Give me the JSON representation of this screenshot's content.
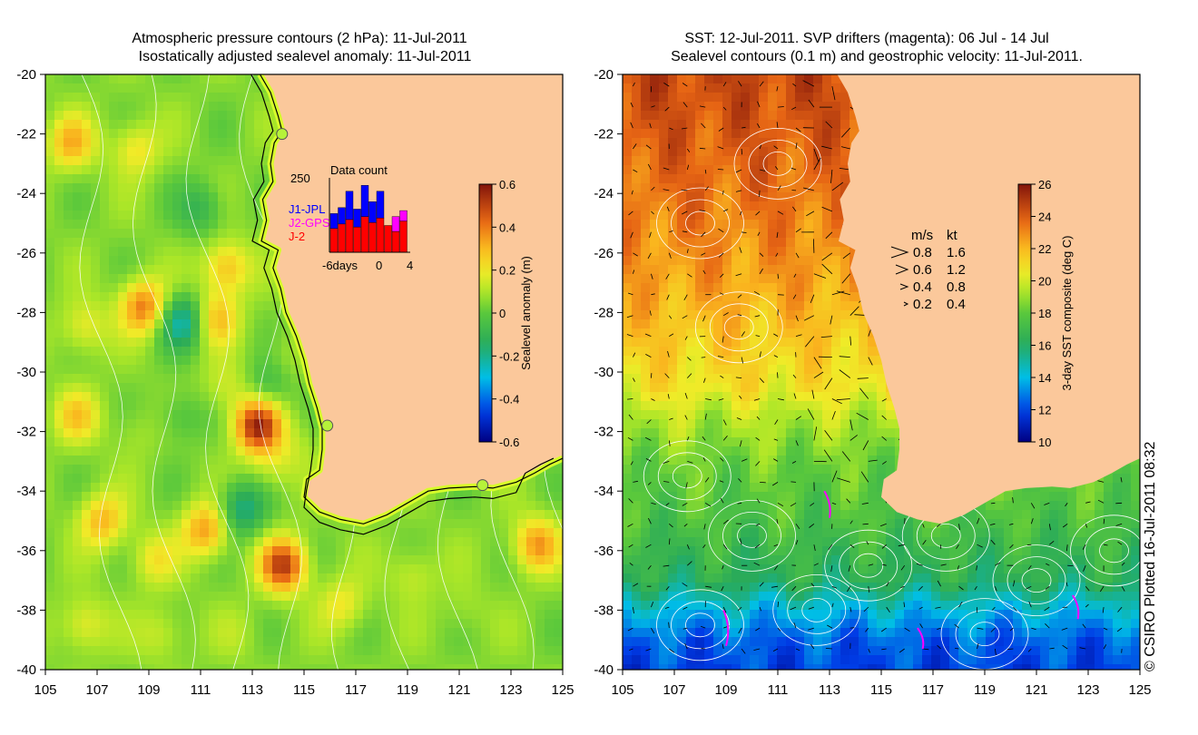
{
  "chart_data": [
    {
      "type": "heatmap",
      "title": [
        "Atmospheric pressure contours (2 hPa): 11-Jul-2011",
        "Isostatically adjusted sealevel anomaly: 11-Jul-2011"
      ],
      "xlim": [
        105,
        125
      ],
      "ylim": [
        -40,
        -20
      ],
      "xticks": [
        105,
        107,
        109,
        111,
        113,
        115,
        117,
        119,
        121,
        123,
        125
      ],
      "yticks": [
        -40,
        -38,
        -36,
        -34,
        -32,
        -30,
        -28,
        -26,
        -24,
        -22,
        -20
      ],
      "colorbar": {
        "label": "Sealevel anomaly (m)",
        "range": [
          -0.6,
          0.6
        ],
        "ticks": [
          "-0.6",
          "-0.4",
          "-0.2",
          "0",
          "0.2",
          "0.4",
          "0.6"
        ]
      },
      "tide_gauges": [
        {
          "lon": 114.15,
          "lat": -22.0
        },
        {
          "lon": 115.9,
          "lat": -31.8
        },
        {
          "lon": 121.9,
          "lat": -33.8
        }
      ],
      "inset": {
        "title": "Data count",
        "ymax_label": "250",
        "ymax": 250,
        "x_ticks": [
          "-6days",
          "0",
          "4"
        ],
        "series_labels": [
          {
            "name": "J1-JPL",
            "color": "#0000ff"
          },
          {
            "name": "J2-GPS",
            "color": "#ff00ff"
          },
          {
            "name": "J-2",
            "color": "#ff0000"
          }
        ],
        "days": [
          -6,
          -5,
          -4,
          -3,
          -2,
          -1,
          0,
          1,
          2,
          3
        ],
        "series": [
          {
            "name": "J-2",
            "values": [
              80,
              95,
              110,
              85,
              120,
              100,
              115,
              90,
              70,
              105
            ]
          },
          {
            "name": "J1-JPL",
            "values": [
              50,
              55,
              95,
              60,
              105,
              70,
              90,
              0,
              0,
              0
            ]
          },
          {
            "name": "J2-GPS",
            "values": [
              0,
              0,
              0,
              0,
              0,
              0,
              0,
              0,
              50,
              35
            ]
          }
        ]
      },
      "anomaly_centers": [
        {
          "lon": 106.0,
          "lat": -22.3,
          "value": 0.3
        },
        {
          "lon": 108.5,
          "lat": -22.5,
          "value": 0.22
        },
        {
          "lon": 111.0,
          "lat": -24.5,
          "value": -0.1
        },
        {
          "lon": 112.0,
          "lat": -26.5,
          "value": 0.3
        },
        {
          "lon": 111.6,
          "lat": -28.2,
          "value": 0.28
        },
        {
          "lon": 108.8,
          "lat": -27.8,
          "value": 0.4
        },
        {
          "lon": 110.3,
          "lat": -28.3,
          "value": -0.25
        },
        {
          "lon": 106.5,
          "lat": -28.5,
          "value": 0.2
        },
        {
          "lon": 106.2,
          "lat": -31.5,
          "value": 0.25
        },
        {
          "lon": 108.5,
          "lat": -32.0,
          "value": 0.1
        },
        {
          "lon": 110.2,
          "lat": -31.5,
          "value": -0.05
        },
        {
          "lon": 113.2,
          "lat": -31.8,
          "value": 0.55
        },
        {
          "lon": 112.0,
          "lat": -30.5,
          "value": 0.15
        },
        {
          "lon": 113.6,
          "lat": -30.5,
          "value": -0.08
        },
        {
          "lon": 107.2,
          "lat": -35.0,
          "value": 0.3
        },
        {
          "lon": 109.2,
          "lat": -36.3,
          "value": 0.2
        },
        {
          "lon": 111.2,
          "lat": -35.3,
          "value": 0.35
        },
        {
          "lon": 112.6,
          "lat": -34.6,
          "value": -0.2
        },
        {
          "lon": 114.2,
          "lat": -36.5,
          "value": 0.5
        },
        {
          "lon": 113.8,
          "lat": -33.2,
          "value": 0.15
        },
        {
          "lon": 110.0,
          "lat": -34.0,
          "value": 0.05
        },
        {
          "lon": 116.5,
          "lat": -37.8,
          "value": 0.2
        },
        {
          "lon": 119.2,
          "lat": -36.8,
          "value": 0.15
        },
        {
          "lon": 121.2,
          "lat": -38.0,
          "value": 0.1
        },
        {
          "lon": 124.0,
          "lat": -35.8,
          "value": 0.35
        },
        {
          "lon": 106.5,
          "lat": -38.5,
          "value": 0.2
        },
        {
          "lon": 109.5,
          "lat": -38.8,
          "value": 0.15
        },
        {
          "lon": 112.5,
          "lat": -38.8,
          "value": 0.1
        },
        {
          "lon": 114.2,
          "lat": -29.5,
          "value": 0.1
        },
        {
          "lon": 114.7,
          "lat": -32.5,
          "value": 0.1
        }
      ],
      "background_value": 0.05
    },
    {
      "type": "heatmap",
      "title": [
        "SST: 12-Jul-2011. SVP drifters (magenta): 06 Jul - 14 Jul",
        "Sealevel contours (0.1 m) and geostrophic velocity: 11-Jul-2011."
      ],
      "xlim": [
        105,
        125
      ],
      "ylim": [
        -40,
        -20
      ],
      "xticks": [
        105,
        107,
        109,
        111,
        113,
        115,
        117,
        119,
        121,
        123,
        125
      ],
      "yticks": [
        -40,
        -38,
        -36,
        -34,
        -32,
        -30,
        -28,
        -26,
        -24,
        -22,
        -20
      ],
      "colorbar": {
        "label": "3-day SST composite (deg C)",
        "range": [
          10,
          26
        ],
        "ticks": [
          "10",
          "12",
          "14",
          "16",
          "18",
          "20",
          "22",
          "24",
          "26"
        ]
      },
      "sst_by_latitude": [
        {
          "lat": -20,
          "value": 24.5
        },
        {
          "lat": -24,
          "value": 23.5
        },
        {
          "lat": -27,
          "value": 22.5
        },
        {
          "lat": -29,
          "value": 21.5
        },
        {
          "lat": -30.5,
          "value": 20.8
        },
        {
          "lat": -31.5,
          "value": 19.5
        },
        {
          "lat": -33,
          "value": 18.3
        },
        {
          "lat": -35,
          "value": 17.5
        },
        {
          "lat": -37,
          "value": 16.2
        },
        {
          "lat": -38,
          "value": 14.0
        },
        {
          "lat": -39,
          "value": 12.5
        },
        {
          "lat": -40,
          "value": 12.0
        }
      ],
      "velocity_legend": {
        "headers": [
          "m/s",
          "kt"
        ],
        "rows": [
          {
            "ms": "0.8",
            "kt": "1.6"
          },
          {
            "ms": "0.6",
            "kt": "1.2"
          },
          {
            "ms": "0.4",
            "kt": "0.8"
          },
          {
            "ms": "0.2",
            "kt": "0.4"
          }
        ]
      }
    }
  ],
  "credit": "© CSIRO Plotted 16-Jul-2011 08:32",
  "colors": {
    "land": "#fbc89b",
    "contour": "#ffffff",
    "vector": "#000000",
    "drifter": "#ff00ff",
    "gauge": "#b6f23a"
  }
}
